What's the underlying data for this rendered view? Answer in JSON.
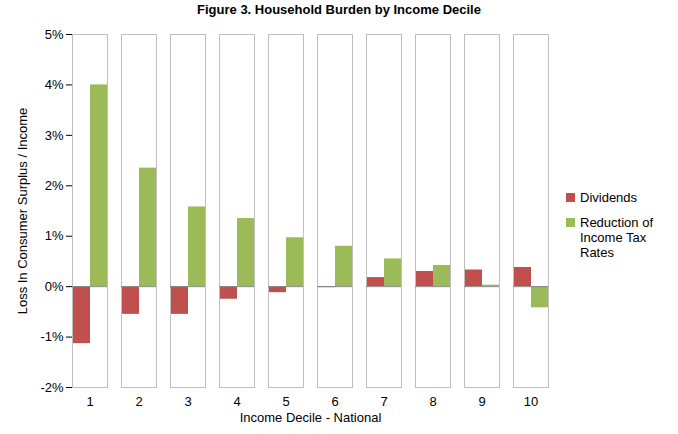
{
  "chart_data": {
    "type": "bar",
    "title": "Figure 3. Household Burden by Income Decile",
    "x_label": "Income Decile - National",
    "y_label": "Loss In Consumer Surplus / Income",
    "categories": [
      "1",
      "2",
      "3",
      "4",
      "5",
      "6",
      "7",
      "8",
      "9",
      "10"
    ],
    "series": [
      {
        "name": "Dividends",
        "color": "#c0504d",
        "values": [
          -1.13,
          -0.55,
          -0.55,
          -0.25,
          -0.12,
          -0.02,
          0.18,
          0.3,
          0.33,
          0.38
        ]
      },
      {
        "name": "Reduction of Income Tax Rates",
        "color": "#9bbb59",
        "values": [
          4.0,
          2.35,
          1.58,
          1.35,
          0.97,
          0.8,
          0.55,
          0.42,
          0.03,
          -0.42
        ]
      }
    ],
    "ylim": [
      -2,
      5
    ],
    "yticks": [
      {
        "value": -2,
        "label": "-2%"
      },
      {
        "value": -1,
        "label": "-1%"
      },
      {
        "value": 0,
        "label": "0%"
      },
      {
        "value": 1,
        "label": "1%"
      },
      {
        "value": 2,
        "label": "2%"
      },
      {
        "value": 3,
        "label": "3%"
      },
      {
        "value": 4,
        "label": "4%"
      },
      {
        "value": 5,
        "label": "5%"
      }
    ],
    "grid": false,
    "legend": "right"
  }
}
